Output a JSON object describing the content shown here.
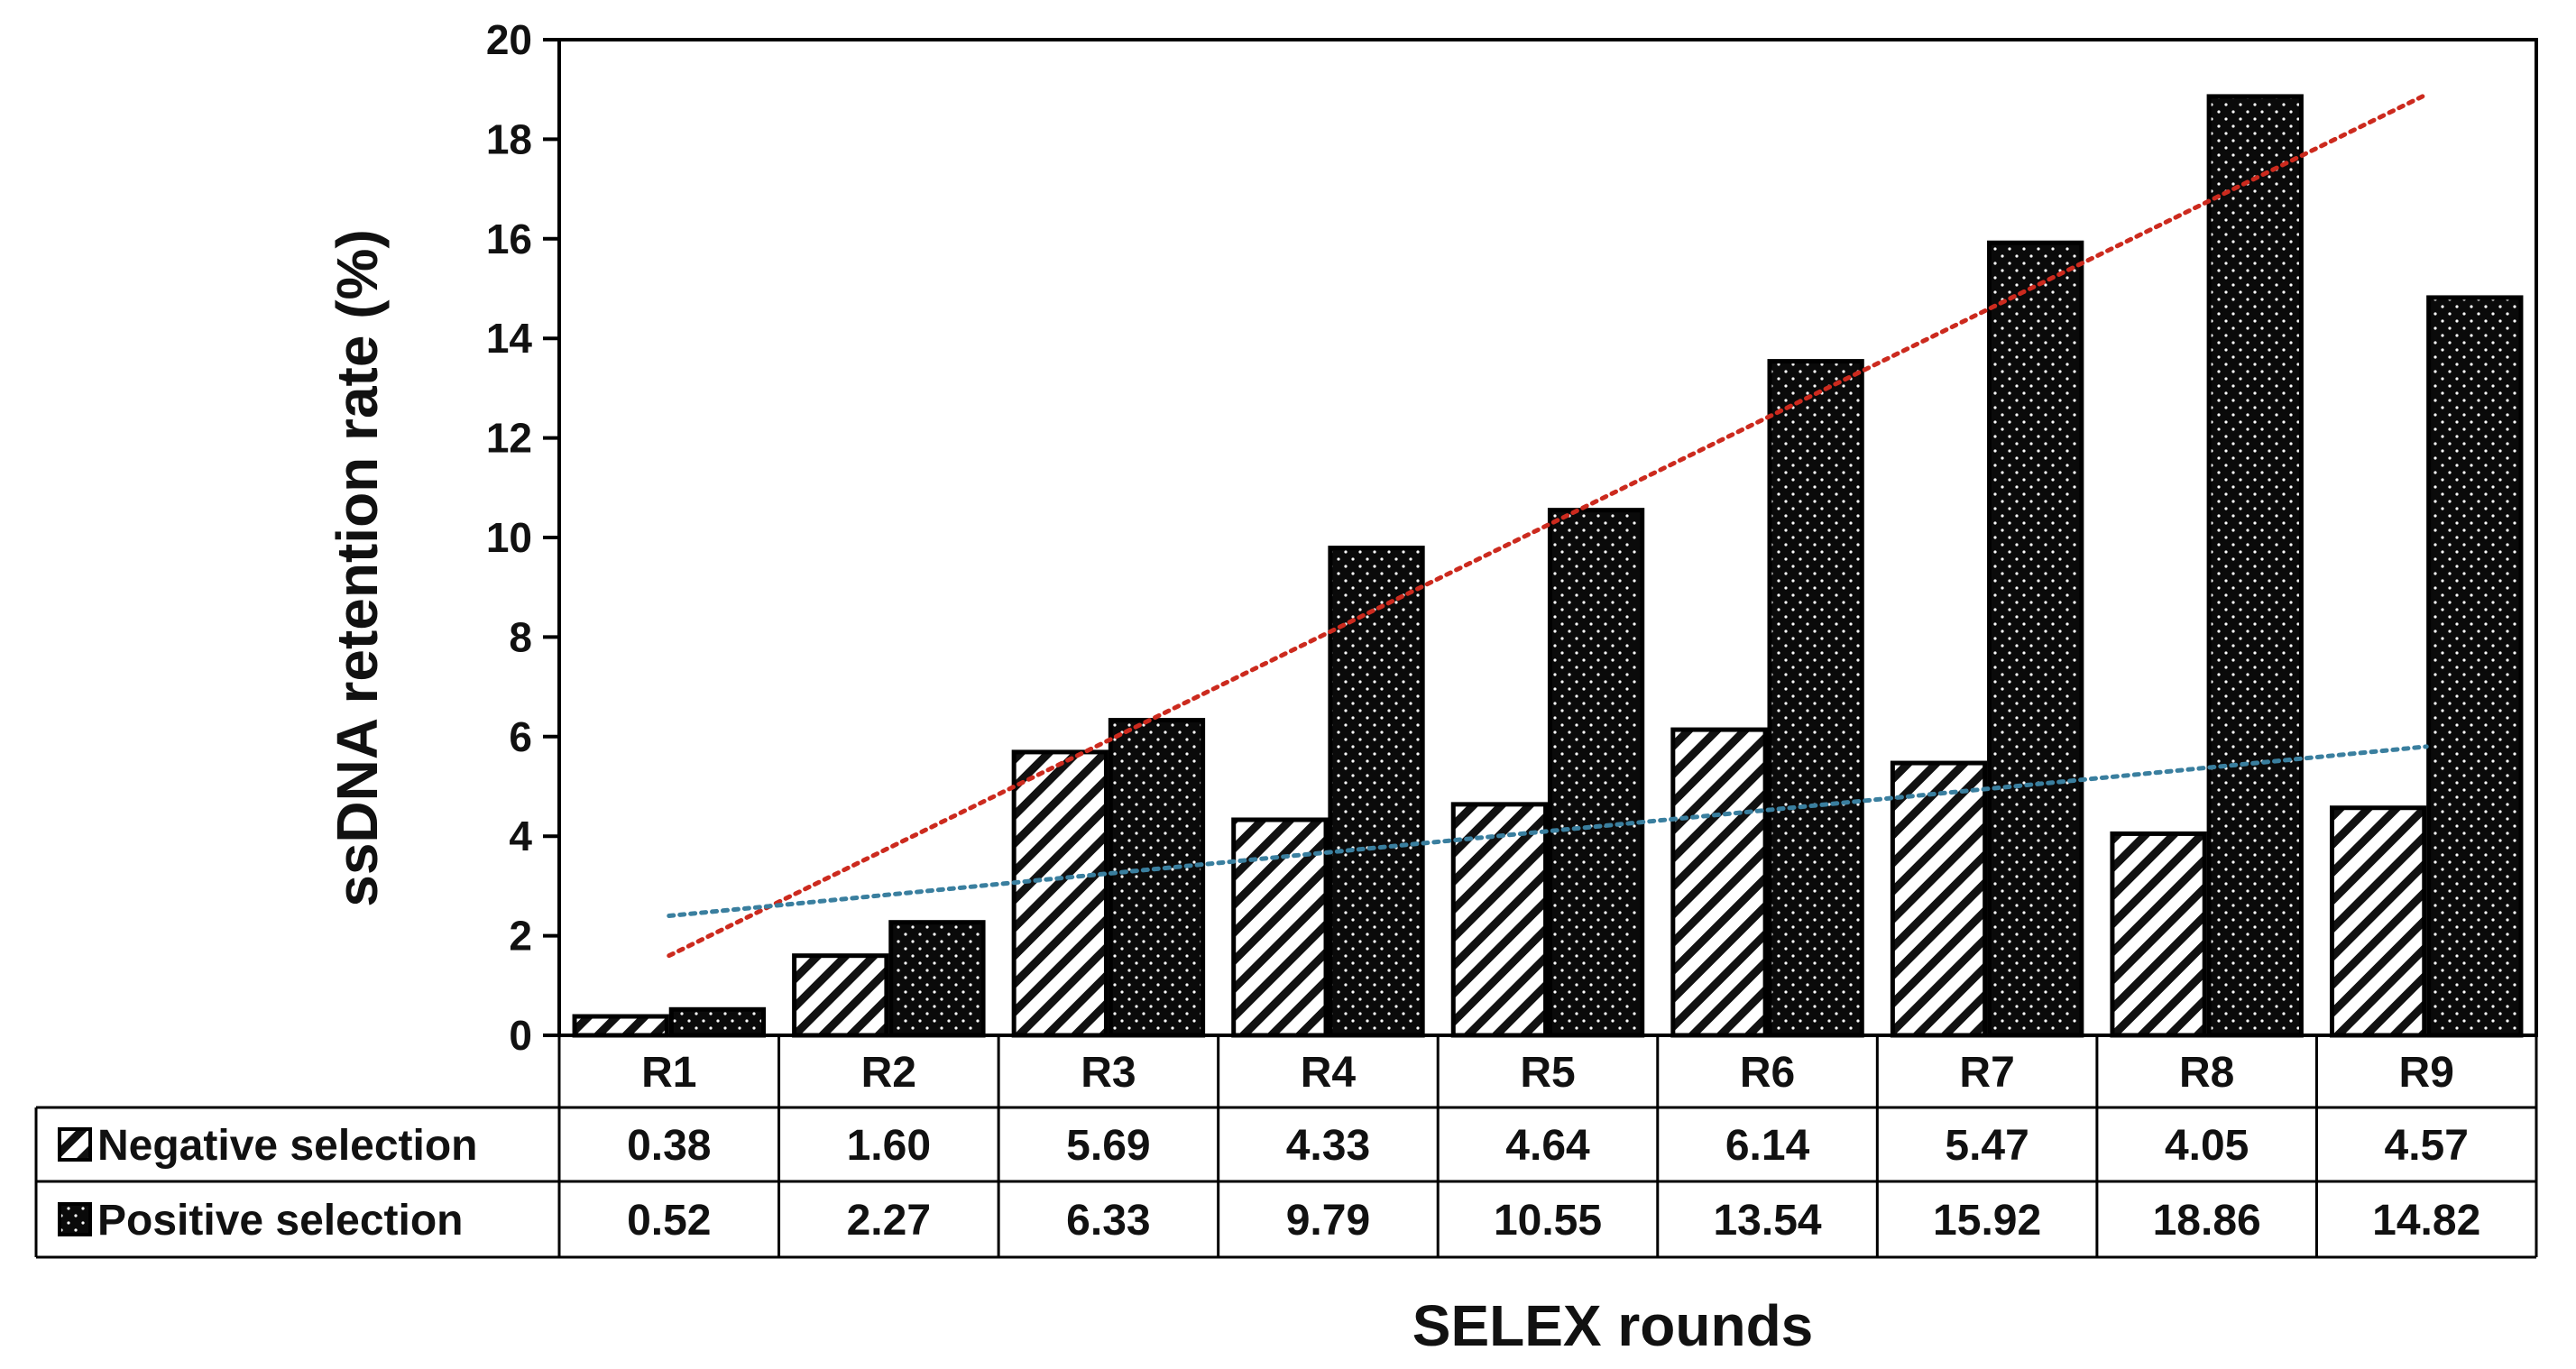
{
  "chart_data": {
    "type": "bar",
    "ylabel": "ssDNA retention rate (%)",
    "xlabel": "SELEX rounds",
    "ylim": [
      0,
      20
    ],
    "yticks": [
      0,
      2,
      4,
      6,
      8,
      10,
      12,
      14,
      16,
      18,
      20
    ],
    "categories": [
      "R1",
      "R2",
      "R3",
      "R4",
      "R5",
      "R6",
      "R7",
      "R8",
      "R9"
    ],
    "series": [
      {
        "name": "Negative selection",
        "pattern": "diagonal-hatch",
        "values": [
          0.38,
          1.6,
          5.69,
          4.33,
          4.64,
          6.14,
          5.47,
          4.05,
          4.57
        ],
        "labels": [
          "0.38",
          "1.60",
          "5.69",
          "4.33",
          "4.64",
          "6.14",
          "5.47",
          "4.05",
          "4.57"
        ]
      },
      {
        "name": "Positive selection",
        "pattern": "white-dots-on-black",
        "values": [
          0.52,
          2.27,
          6.33,
          9.79,
          10.55,
          13.54,
          15.92,
          18.86,
          14.82
        ],
        "labels": [
          "0.52",
          "2.27",
          "6.33",
          "9.79",
          "10.55",
          "13.54",
          "15.92",
          "18.86",
          "14.82"
        ]
      }
    ],
    "trendlines": [
      {
        "series": "Positive selection",
        "style": "dotted",
        "color": "#cc2a1e",
        "start": 1.6,
        "end": 18.9
      },
      {
        "series": "Negative selection",
        "style": "dotted",
        "color": "#3a7f9f",
        "start": 2.4,
        "end": 5.8
      }
    ],
    "legend_placement": "data-table-left",
    "grid": false,
    "has_data_table": true
  }
}
